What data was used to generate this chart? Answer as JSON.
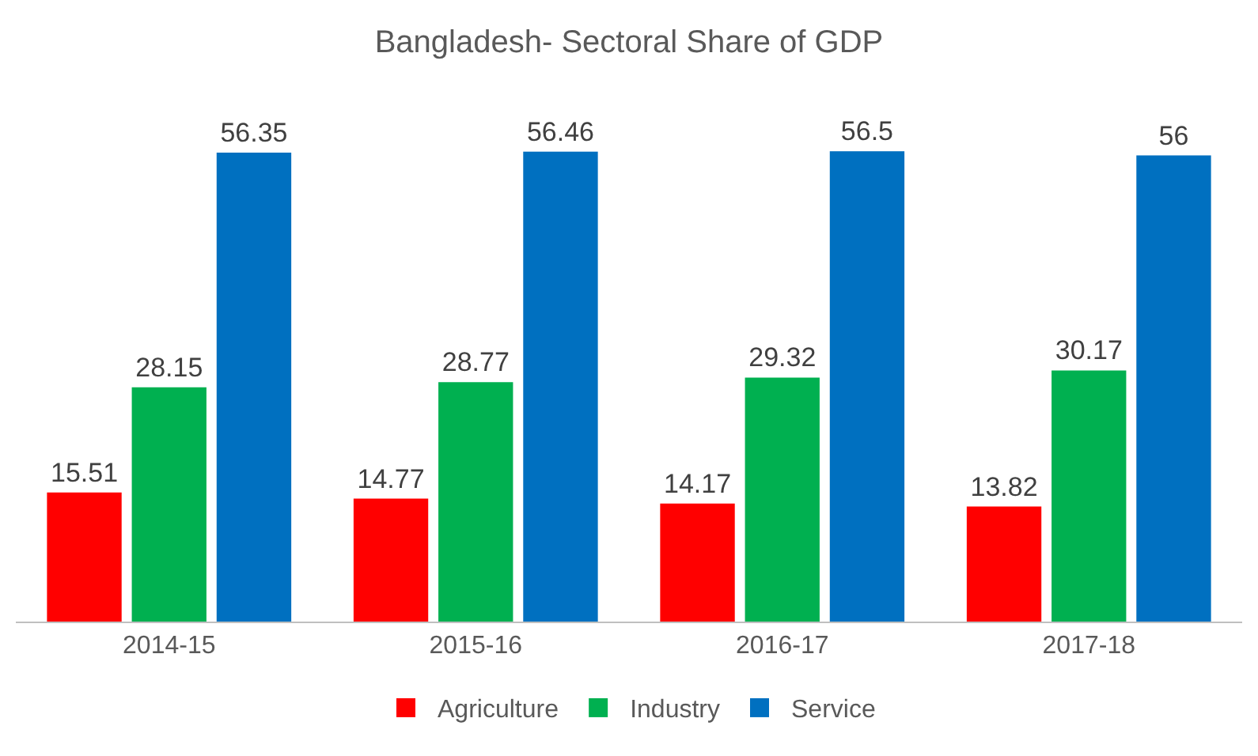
{
  "chart_data": {
    "type": "bar",
    "title": "Bangladesh- Sectoral Share of GDP",
    "categories": [
      "2014-15",
      "2015-16",
      "2016-17",
      "2017-18"
    ],
    "series": [
      {
        "name": "Agriculture",
        "color": "#ff0000",
        "values": [
          15.51,
          14.77,
          14.17,
          13.82
        ]
      },
      {
        "name": "Industry",
        "color": "#00b050",
        "values": [
          28.15,
          28.77,
          29.32,
          30.17
        ]
      },
      {
        "name": "Service",
        "color": "#0070c0",
        "values": [
          56.35,
          56.46,
          56.5,
          56
        ]
      }
    ],
    "data_labels": true,
    "legend": "bottom"
  }
}
